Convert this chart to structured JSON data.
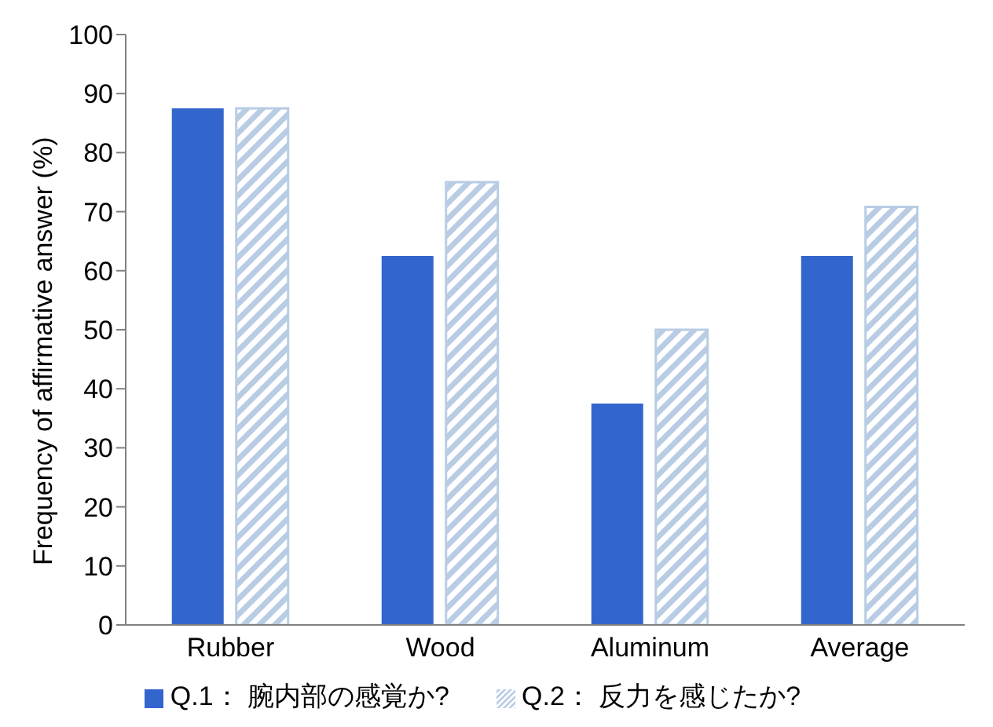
{
  "chart_data": {
    "type": "bar",
    "ylabel": "Frequency of affirmative answer (%)",
    "categories": [
      "Rubber",
      "Wood",
      "Aluminum",
      "Average"
    ],
    "series": [
      {
        "name": "Q.1： 腕内部の感覚か?",
        "color": "#3366cc",
        "values": [
          87.5,
          62.5,
          37.5,
          62.5
        ]
      },
      {
        "name": "Q.2： 反力を感じたか?",
        "color": "#b8cce4",
        "values": [
          87.5,
          75,
          50,
          70.8
        ]
      }
    ],
    "ylim": [
      0,
      100
    ],
    "yticks": [
      0,
      10,
      20,
      30,
      40,
      50,
      60,
      70,
      80,
      90,
      100
    ],
    "grid": false,
    "legend": "bottom"
  }
}
